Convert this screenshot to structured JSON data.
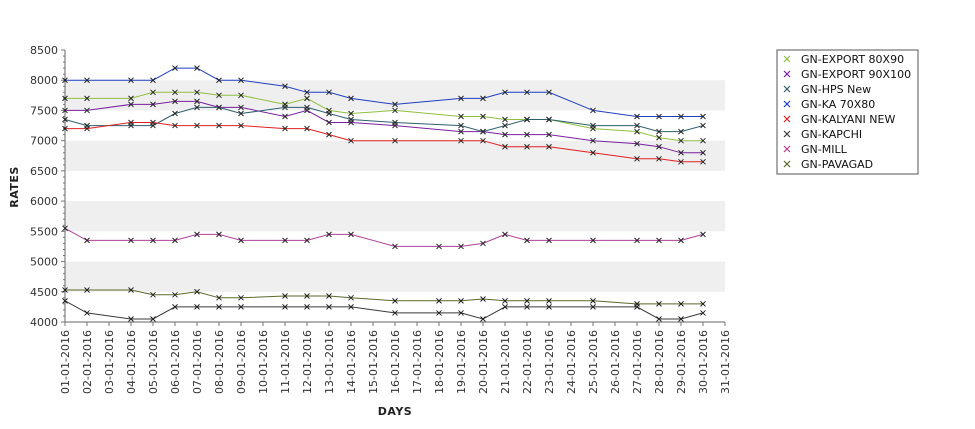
{
  "chart_data": {
    "type": "line",
    "title": "",
    "xlabel": "DAYS",
    "ylabel": "RATES",
    "ylim": [
      4000,
      8500
    ],
    "yticks": [
      4000,
      4500,
      5000,
      5500,
      6000,
      6500,
      7000,
      7500,
      8000,
      8500
    ],
    "categories": [
      "01-01-2016",
      "02-01-2016",
      "03-01-2016",
      "04-01-2016",
      "05-01-2016",
      "06-01-2016",
      "07-01-2016",
      "08-01-2016",
      "09-01-2016",
      "10-01-2016",
      "11-01-2016",
      "12-01-2016",
      "13-01-2016",
      "14-01-2016",
      "15-01-2016",
      "16-01-2016",
      "17-01-2016",
      "18-01-2016",
      "19-01-2016",
      "20-01-2016",
      "21-01-2016",
      "22-01-2016",
      "23-01-2016",
      "24-01-2016",
      "25-01-2016",
      "26-01-2016",
      "27-01-2016",
      "28-01-2016",
      "29-01-2016",
      "30-01-2016",
      "31-01-2016"
    ],
    "grid": "alternating horizontal bands",
    "legend_position": "right",
    "series": [
      {
        "name": "GN-EXPORT 80X90",
        "color": "#8fbf3f",
        "points": [
          [
            1,
            7700
          ],
          [
            2,
            7700
          ],
          [
            4,
            7700
          ],
          [
            5,
            7800
          ],
          [
            6,
            7800
          ],
          [
            7,
            7800
          ],
          [
            8,
            7750
          ],
          [
            9,
            7750
          ],
          [
            11,
            7600
          ],
          [
            12,
            7700
          ],
          [
            13,
            7500
          ],
          [
            14,
            7450
          ],
          [
            16,
            7500
          ],
          [
            19,
            7400
          ],
          [
            20,
            7400
          ],
          [
            21,
            7350
          ],
          [
            22,
            7350
          ],
          [
            23,
            7350
          ],
          [
            25,
            7200
          ],
          [
            27,
            7150
          ],
          [
            28,
            7050
          ],
          [
            29,
            7000
          ],
          [
            30,
            7000
          ]
        ]
      },
      {
        "name": "GN-EXPORT 90X100",
        "color": "#7a1fa0",
        "points": [
          [
            1,
            7500
          ],
          [
            2,
            7500
          ],
          [
            4,
            7600
          ],
          [
            5,
            7600
          ],
          [
            6,
            7650
          ],
          [
            7,
            7650
          ],
          [
            8,
            7550
          ],
          [
            9,
            7550
          ],
          [
            11,
            7400
          ],
          [
            12,
            7500
          ],
          [
            13,
            7300
          ],
          [
            14,
            7300
          ],
          [
            16,
            7250
          ],
          [
            19,
            7150
          ],
          [
            20,
            7150
          ],
          [
            21,
            7100
          ],
          [
            22,
            7100
          ],
          [
            23,
            7100
          ],
          [
            25,
            7000
          ],
          [
            27,
            6950
          ],
          [
            28,
            6900
          ],
          [
            29,
            6800
          ],
          [
            30,
            6800
          ]
        ]
      },
      {
        "name": "GN-HPS New",
        "color": "#2f5f6f",
        "points": [
          [
            1,
            7350
          ],
          [
            2,
            7250
          ],
          [
            4,
            7250
          ],
          [
            5,
            7250
          ],
          [
            6,
            7450
          ],
          [
            7,
            7550
          ],
          [
            8,
            7550
          ],
          [
            9,
            7450
          ],
          [
            11,
            7550
          ],
          [
            12,
            7550
          ],
          [
            13,
            7450
          ],
          [
            14,
            7350
          ],
          [
            16,
            7300
          ],
          [
            19,
            7250
          ],
          [
            20,
            7150
          ],
          [
            21,
            7250
          ],
          [
            22,
            7350
          ],
          [
            23,
            7350
          ],
          [
            25,
            7250
          ],
          [
            27,
            7250
          ],
          [
            28,
            7150
          ],
          [
            29,
            7150
          ],
          [
            30,
            7250
          ]
        ]
      },
      {
        "name": "GN-KA 70X80",
        "color": "#1f3fc0",
        "points": [
          [
            1,
            8000
          ],
          [
            2,
            8000
          ],
          [
            4,
            8000
          ],
          [
            5,
            8000
          ],
          [
            6,
            8200
          ],
          [
            7,
            8200
          ],
          [
            8,
            8000
          ],
          [
            9,
            8000
          ],
          [
            11,
            7900
          ],
          [
            12,
            7800
          ],
          [
            13,
            7800
          ],
          [
            14,
            7700
          ],
          [
            16,
            7600
          ],
          [
            19,
            7700
          ],
          [
            20,
            7700
          ],
          [
            21,
            7800
          ],
          [
            22,
            7800
          ],
          [
            23,
            7800
          ],
          [
            25,
            7500
          ],
          [
            27,
            7400
          ],
          [
            28,
            7400
          ],
          [
            29,
            7400
          ],
          [
            30,
            7400
          ]
        ]
      },
      {
        "name": "GN-KALYANI NEW",
        "color": "#e02020",
        "points": [
          [
            1,
            7200
          ],
          [
            2,
            7200
          ],
          [
            4,
            7300
          ],
          [
            5,
            7300
          ],
          [
            6,
            7250
          ],
          [
            7,
            7250
          ],
          [
            8,
            7250
          ],
          [
            9,
            7250
          ],
          [
            11,
            7200
          ],
          [
            12,
            7200
          ],
          [
            13,
            7100
          ],
          [
            14,
            7000
          ],
          [
            16,
            7000
          ],
          [
            19,
            7000
          ],
          [
            20,
            7000
          ],
          [
            21,
            6900
          ],
          [
            22,
            6900
          ],
          [
            23,
            6900
          ],
          [
            25,
            6800
          ],
          [
            27,
            6700
          ],
          [
            28,
            6700
          ],
          [
            29,
            6650
          ],
          [
            30,
            6650
          ]
        ]
      },
      {
        "name": "GN-KAPCHI",
        "color": "#3a3a3a",
        "points": [
          [
            1,
            4350
          ],
          [
            2,
            4150
          ],
          [
            4,
            4050
          ],
          [
            5,
            4050
          ],
          [
            6,
            4250
          ],
          [
            7,
            4250
          ],
          [
            8,
            4250
          ],
          [
            9,
            4250
          ],
          [
            11,
            4250
          ],
          [
            12,
            4250
          ],
          [
            13,
            4250
          ],
          [
            14,
            4250
          ],
          [
            16,
            4150
          ],
          [
            18,
            4150
          ],
          [
            19,
            4150
          ],
          [
            20,
            4050
          ],
          [
            21,
            4250
          ],
          [
            22,
            4250
          ],
          [
            23,
            4250
          ],
          [
            25,
            4250
          ],
          [
            27,
            4250
          ],
          [
            28,
            4050
          ],
          [
            29,
            4050
          ],
          [
            30,
            4150
          ]
        ]
      },
      {
        "name": "GN-MILL",
        "color": "#b0409a",
        "points": [
          [
            1,
            5550
          ],
          [
            2,
            5350
          ],
          [
            4,
            5350
          ],
          [
            5,
            5350
          ],
          [
            6,
            5350
          ],
          [
            7,
            5450
          ],
          [
            8,
            5450
          ],
          [
            9,
            5350
          ],
          [
            11,
            5350
          ],
          [
            12,
            5350
          ],
          [
            13,
            5450
          ],
          [
            14,
            5450
          ],
          [
            16,
            5250
          ],
          [
            18,
            5250
          ],
          [
            19,
            5250
          ],
          [
            20,
            5300
          ],
          [
            21,
            5450
          ],
          [
            22,
            5350
          ],
          [
            23,
            5350
          ],
          [
            25,
            5350
          ],
          [
            27,
            5350
          ],
          [
            28,
            5350
          ],
          [
            29,
            5350
          ],
          [
            30,
            5450
          ]
        ]
      },
      {
        "name": "GN-PAVAGAD",
        "color": "#5a6a2a",
        "points": [
          [
            1,
            4530
          ],
          [
            2,
            4530
          ],
          [
            4,
            4530
          ],
          [
            5,
            4450
          ],
          [
            6,
            4450
          ],
          [
            7,
            4500
          ],
          [
            8,
            4400
          ],
          [
            9,
            4400
          ],
          [
            11,
            4430
          ],
          [
            12,
            4430
          ],
          [
            13,
            4430
          ],
          [
            14,
            4400
          ],
          [
            16,
            4350
          ],
          [
            18,
            4350
          ],
          [
            19,
            4350
          ],
          [
            20,
            4380
          ],
          [
            21,
            4350
          ],
          [
            22,
            4350
          ],
          [
            23,
            4350
          ],
          [
            25,
            4350
          ],
          [
            27,
            4300
          ],
          [
            28,
            4300
          ],
          [
            29,
            4300
          ],
          [
            30,
            4300
          ]
        ]
      }
    ]
  }
}
